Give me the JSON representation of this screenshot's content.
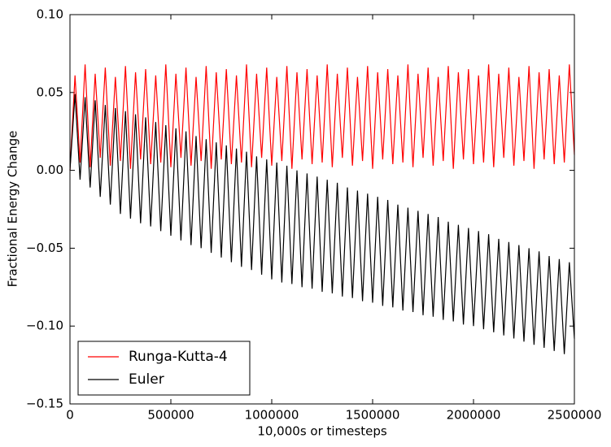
{
  "chart_data": {
    "type": "line",
    "xlabel": "10,000s or timesteps",
    "ylabel": "Fractional Energy Change",
    "x": [
      0,
      25000,
      50000,
      75000,
      100000,
      125000,
      150000,
      175000,
      200000,
      225000,
      250000,
      275000,
      300000,
      325000,
      350000,
      375000,
      400000,
      425000,
      450000,
      475000,
      500000,
      525000,
      550000,
      575000,
      600000,
      625000,
      650000,
      675000,
      700000,
      725000,
      750000,
      775000,
      800000,
      825000,
      850000,
      875000,
      900000,
      925000,
      950000,
      975000,
      1000000,
      1025000,
      1050000,
      1075000,
      1100000,
      1125000,
      1150000,
      1175000,
      1200000,
      1225000,
      1250000,
      1275000,
      1300000,
      1325000,
      1350000,
      1375000,
      1400000,
      1425000,
      1450000,
      1475000,
      1500000,
      1525000,
      1550000,
      1575000,
      1600000,
      1625000,
      1650000,
      1675000,
      1700000,
      1725000,
      1750000,
      1775000,
      1800000,
      1825000,
      1850000,
      1875000,
      1900000,
      1925000,
      1950000,
      1975000,
      2000000,
      2025000,
      2050000,
      2075000,
      2100000,
      2125000,
      2150000,
      2175000,
      2200000,
      2225000,
      2250000,
      2275000,
      2300000,
      2325000,
      2350000,
      2375000,
      2400000,
      2425000,
      2450000,
      2475000,
      2500000
    ],
    "series": [
      {
        "name": "Runga-Kutta-4",
        "color": "#ff0000",
        "values": [
          0.0,
          0.061,
          0.005,
          0.068,
          0.002,
          0.062,
          0.008,
          0.066,
          0.003,
          0.06,
          0.006,
          0.067,
          0.001,
          0.063,
          0.007,
          0.065,
          0.004,
          0.061,
          0.005,
          0.068,
          0.002,
          0.062,
          0.008,
          0.066,
          0.003,
          0.06,
          0.006,
          0.067,
          0.001,
          0.063,
          0.007,
          0.065,
          0.004,
          0.061,
          0.005,
          0.068,
          0.002,
          0.062,
          0.008,
          0.066,
          0.003,
          0.06,
          0.006,
          0.067,
          0.001,
          0.063,
          0.007,
          0.065,
          0.004,
          0.061,
          0.005,
          0.068,
          0.002,
          0.062,
          0.008,
          0.066,
          0.003,
          0.06,
          0.006,
          0.067,
          0.001,
          0.063,
          0.007,
          0.065,
          0.004,
          0.061,
          0.005,
          0.068,
          0.002,
          0.062,
          0.008,
          0.066,
          0.003,
          0.06,
          0.006,
          0.067,
          0.001,
          0.063,
          0.007,
          0.065,
          0.004,
          0.061,
          0.005,
          0.068,
          0.002,
          0.062,
          0.008,
          0.066,
          0.003,
          0.06,
          0.006,
          0.067,
          0.001,
          0.063,
          0.007,
          0.065,
          0.004,
          0.061,
          0.005,
          0.068,
          0.01
        ]
      },
      {
        "name": "Euler",
        "color": "#000000",
        "values": [
          0.0,
          0.049,
          -0.006,
          0.047,
          -0.011,
          0.045,
          -0.017,
          0.042,
          -0.022,
          0.04,
          -0.028,
          0.038,
          -0.031,
          0.036,
          -0.034,
          0.034,
          -0.036,
          0.031,
          -0.039,
          0.029,
          -0.042,
          0.027,
          -0.045,
          0.025,
          -0.048,
          0.022,
          -0.05,
          0.02,
          -0.053,
          0.018,
          -0.056,
          0.016,
          -0.059,
          0.014,
          -0.062,
          0.012,
          -0.064,
          0.009,
          -0.067,
          0.007,
          -0.07,
          0.005,
          -0.072,
          0.003,
          -0.073,
          0.0,
          -0.075,
          -0.002,
          -0.076,
          -0.004,
          -0.078,
          -0.006,
          -0.079,
          -0.008,
          -0.081,
          -0.011,
          -0.082,
          -0.013,
          -0.084,
          -0.015,
          -0.085,
          -0.017,
          -0.087,
          -0.019,
          -0.088,
          -0.022,
          -0.09,
          -0.024,
          -0.091,
          -0.026,
          -0.093,
          -0.028,
          -0.094,
          -0.03,
          -0.096,
          -0.033,
          -0.097,
          -0.035,
          -0.099,
          -0.037,
          -0.1,
          -0.039,
          -0.102,
          -0.041,
          -0.104,
          -0.044,
          -0.106,
          -0.046,
          -0.108,
          -0.048,
          -0.11,
          -0.05,
          -0.112,
          -0.052,
          -0.114,
          -0.055,
          -0.116,
          -0.057,
          -0.118,
          -0.059,
          -0.108
        ]
      }
    ],
    "xlim": [
      0,
      2500000
    ],
    "xticks": [
      0,
      500000,
      1000000,
      1500000,
      2000000,
      2500000
    ],
    "ylim": [
      -0.15,
      0.1
    ],
    "yticks": [
      {
        "value": -0.15,
        "label": "−0.15"
      },
      {
        "value": -0.1,
        "label": "−0.10"
      },
      {
        "value": -0.05,
        "label": "−0.05"
      },
      {
        "value": 0,
        "label": "0.00"
      },
      {
        "value": 0.05,
        "label": "0.05"
      },
      {
        "value": 0.1,
        "label": "0.10"
      }
    ],
    "legend": "lower left"
  }
}
